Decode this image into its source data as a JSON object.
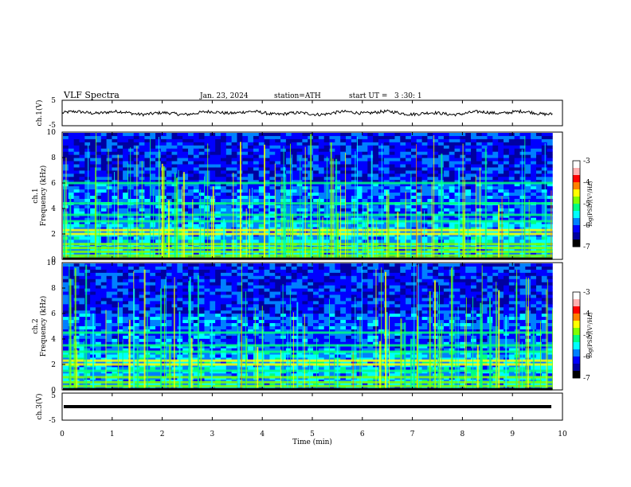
{
  "header": {
    "title": "VLF Spectra",
    "date": "Jan. 23, 2024",
    "station": "station=ATH",
    "start_ut": "start UT =   3 :30: 1"
  },
  "chart_data": [
    {
      "type": "line",
      "ylabel": "ch.1(V)",
      "ylim": [
        -5,
        5
      ],
      "yticks": [
        "5",
        "-5"
      ],
      "baseline": 0,
      "description_series": "waveform"
    },
    {
      "type": "heatmap",
      "ylabel": "ch.1 Frequency (kHz)",
      "ylim": [
        0,
        10
      ],
      "yticks": [
        "10",
        "8",
        "6",
        "4",
        "2",
        "0"
      ],
      "xlim": [
        0,
        10
      ],
      "colorbar": {
        "label": "log(PSD)(V²/Hz)",
        "range": [
          -7,
          -3
        ],
        "ticks": [
          "-3",
          "-4",
          "-5",
          "-6",
          "-7"
        ],
        "colors": [
          "#000000",
          "#0000a0",
          "#0000ff",
          "#0080ff",
          "#00ffff",
          "#00ff80",
          "#80ff00",
          "#ffff00",
          "#ff8000",
          "#ff0000",
          "#ffb0b0",
          "#ffffff"
        ]
      },
      "bands_khz": [
        0.1,
        0.3,
        0.6,
        0.9,
        1.2,
        2.0,
        2.3,
        3.0,
        3.5,
        4.4,
        6.0
      ]
    },
    {
      "type": "heatmap",
      "ylabel": "ch.2 Frequency (kHz)",
      "ylim": [
        0,
        10
      ],
      "yticks": [
        "10",
        "8",
        "6",
        "4",
        "2",
        "0"
      ],
      "xlim": [
        0,
        10
      ],
      "colorbar": {
        "label": "log(PSD)(V²/Hz)",
        "range": [
          -7,
          -3
        ],
        "ticks": [
          "-3",
          "-4",
          "-5",
          "-6",
          "-7"
        ],
        "colors": [
          "#000000",
          "#0000a0",
          "#0000ff",
          "#0080ff",
          "#00ffff",
          "#00ff80",
          "#80ff00",
          "#ffff00",
          "#ff8000",
          "#ff0000",
          "#ffb0b0",
          "#ffffff"
        ]
      },
      "bands_khz": [
        0.3,
        0.6,
        1.0,
        1.5,
        2.0,
        2.3,
        3.0,
        3.5,
        4.5
      ]
    },
    {
      "type": "line",
      "ylabel": "ch.3(V)",
      "ylim": [
        -5,
        5
      ],
      "yticks": [
        "5",
        "-5"
      ],
      "baseline": 0,
      "xlabel": "Time (min)",
      "xlim": [
        0,
        10
      ],
      "xticks": [
        "0",
        "1",
        "2",
        "3",
        "4",
        "5",
        "6",
        "7",
        "8",
        "9",
        "10"
      ]
    }
  ]
}
